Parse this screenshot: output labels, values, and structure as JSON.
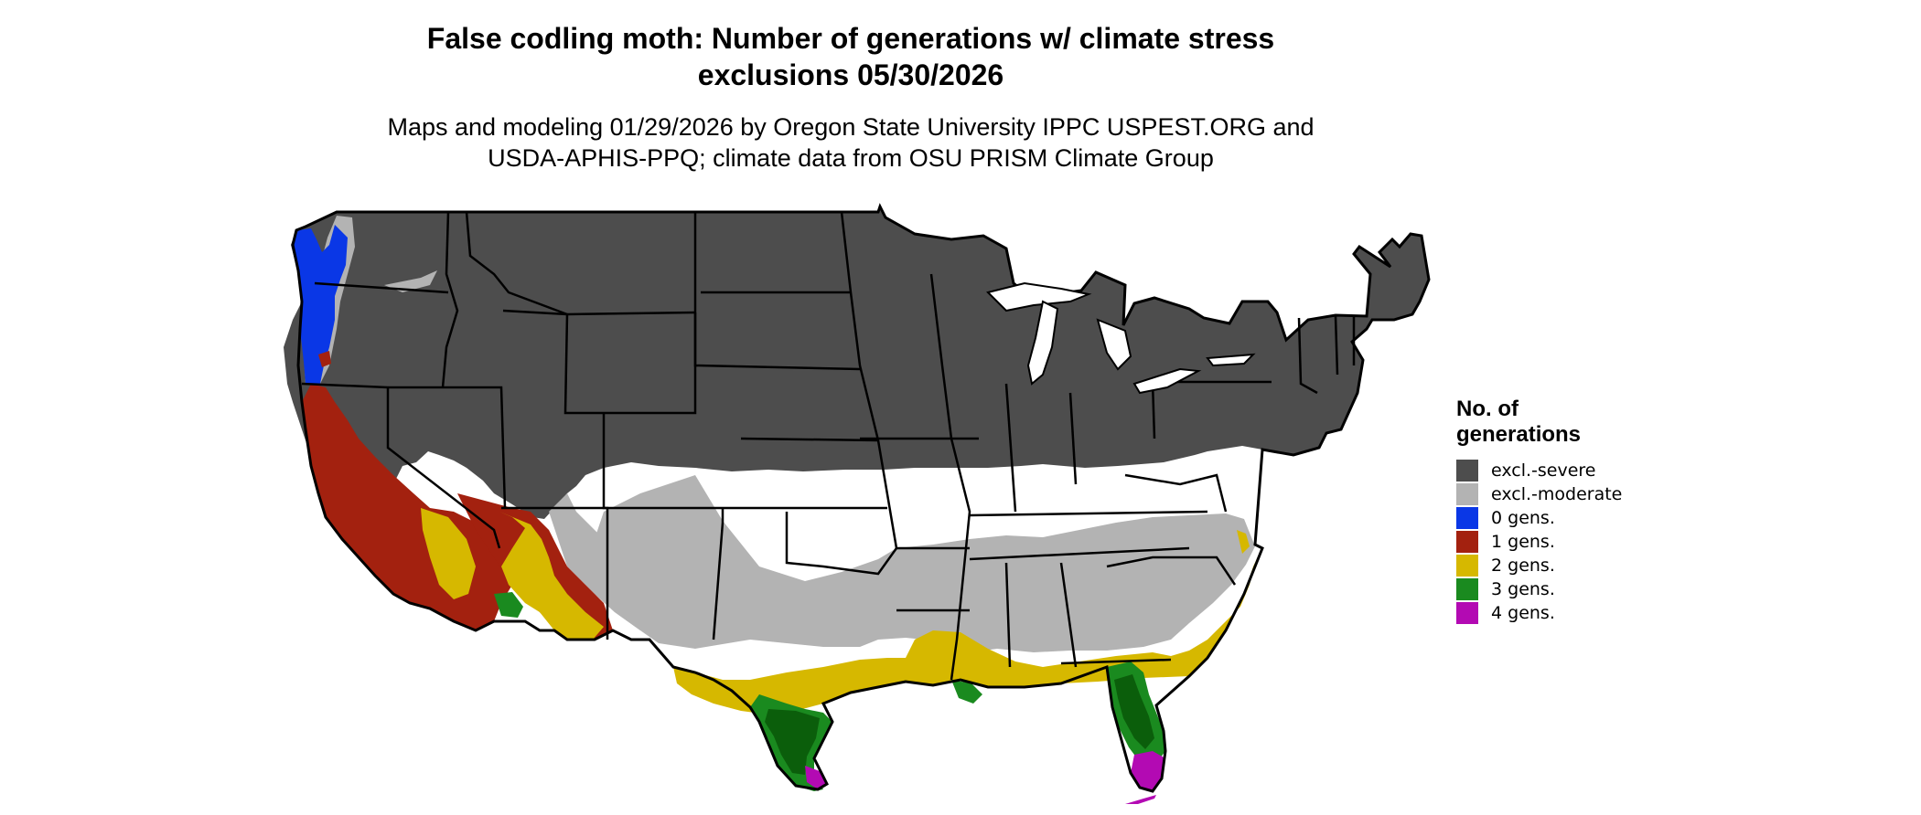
{
  "title_line1": "False codling moth: Number of generations w/ climate stress",
  "title_line2": "exclusions 05/30/2026",
  "subtitle_line1": "Maps and modeling 01/29/2026 by Oregon State University IPPC USPEST.ORG and",
  "subtitle_line2": "USDA-APHIS-PPQ; climate data from OSU PRISM Climate Group",
  "legend": {
    "title_line1": "No. of",
    "title_line2": "generations",
    "items": [
      {
        "label": "excl.-severe",
        "color": "#4d4d4d"
      },
      {
        "label": "excl.-moderate",
        "color": "#b3b3b3"
      },
      {
        "label": "0 gens.",
        "color": "#0a37e6"
      },
      {
        "label": "1 gens.",
        "color": "#a3210f"
      },
      {
        "label": "2 gens.",
        "color": "#d6b800"
      },
      {
        "label": "3 gens.",
        "color": "#1a8a1f"
      },
      {
        "label": "4 gens.",
        "color": "#b30ab3"
      }
    ]
  },
  "map_colors": {
    "severe": "#4d4d4d",
    "moderate": "#b3b3b3",
    "gen0": "#0a37e6",
    "gen1": "#a3210f",
    "gen2": "#d6b800",
    "gen3": "#1a8a1f",
    "gen3_dark": "#0b5e0b",
    "gen4": "#b30ab3",
    "border": "#000000"
  }
}
